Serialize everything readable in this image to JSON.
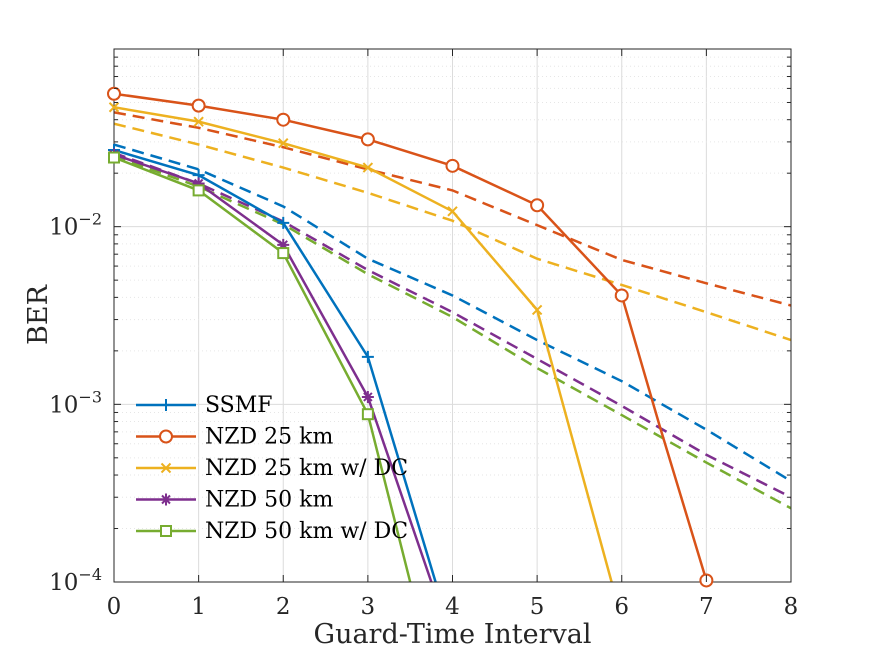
{
  "chart_data": {
    "type": "line",
    "xlabel": "Guard-Time Interval",
    "ylabel": "BER",
    "xlim": [
      0,
      8
    ],
    "ylim": [
      0.0001,
      0.1
    ],
    "yscale": "log",
    "grid": true,
    "minor_grid": true,
    "legend_position": "bottom-left",
    "x_ticks": [
      {
        "value": 0,
        "label": "0"
      },
      {
        "value": 1,
        "label": "1"
      },
      {
        "value": 2,
        "label": "2"
      },
      {
        "value": 3,
        "label": "3"
      },
      {
        "value": 4,
        "label": "4"
      },
      {
        "value": 5,
        "label": "5"
      },
      {
        "value": 6,
        "label": "6"
      },
      {
        "value": 7,
        "label": "7"
      },
      {
        "value": 8,
        "label": "8"
      }
    ],
    "y_ticks": [
      {
        "value": 0.0001,
        "mantissa": "10",
        "exponent": "−4"
      },
      {
        "value": 0.001,
        "mantissa": "10",
        "exponent": "−3"
      },
      {
        "value": 0.01,
        "mantissa": "10",
        "exponent": "−2"
      }
    ],
    "series": [
      {
        "name": "SSMF",
        "color": "#0072BD",
        "marker": "plus",
        "style": "solid",
        "x": [
          0,
          1,
          2,
          3,
          3.8
        ],
        "y": [
          0.027,
          0.0195,
          0.0105,
          0.00185,
          0.0001
        ]
      },
      {
        "name": "NZD 25 km",
        "color": "#D95319",
        "marker": "circle",
        "style": "solid",
        "x": [
          0,
          1,
          2,
          3,
          4,
          5,
          6,
          6.45,
          7
        ],
        "y": [
          0.056,
          0.048,
          0.04,
          0.031,
          0.022,
          0.0132,
          0.0041,
          0.00075,
          0.000102
        ]
      },
      {
        "name": "NZD 25 km w/ DC",
        "color": "#EDB120",
        "marker": "x",
        "style": "solid",
        "x": [
          0,
          1,
          2,
          3,
          4,
          5,
          5.88
        ],
        "y": [
          0.047,
          0.039,
          0.0295,
          0.0215,
          0.0122,
          0.0034,
          0.0001
        ]
      },
      {
        "name": "NZD 50 km",
        "color": "#7E2F8E",
        "marker": "asterisk",
        "style": "solid",
        "x": [
          0,
          1,
          2,
          3,
          3.75
        ],
        "y": [
          0.0255,
          0.0175,
          0.0079,
          0.0011,
          0.0001
        ]
      },
      {
        "name": "NZD 50 km w/ DC",
        "color": "#77AC30",
        "marker": "square",
        "style": "solid",
        "x": [
          0,
          1,
          2,
          3,
          3.5
        ],
        "y": [
          0.0245,
          0.016,
          0.0071,
          0.00088,
          0.0001
        ]
      }
    ],
    "dashed_lines": [
      {
        "color": "#0072BD",
        "x": [
          0,
          1,
          2,
          3,
          4,
          5,
          6,
          7,
          8
        ],
        "y": [
          0.029,
          0.021,
          0.013,
          0.0066,
          0.0041,
          0.0023,
          0.00135,
          0.00072,
          0.00037
        ]
      },
      {
        "color": "#D95319",
        "x": [
          0,
          1,
          2,
          3,
          4,
          5,
          6,
          7,
          8
        ],
        "y": [
          0.044,
          0.036,
          0.028,
          0.021,
          0.016,
          0.0102,
          0.0065,
          0.0048,
          0.0036
        ]
      },
      {
        "color": "#EDB120",
        "x": [
          0,
          1,
          2,
          3,
          4,
          5,
          6,
          7,
          8
        ],
        "y": [
          0.038,
          0.029,
          0.0215,
          0.0155,
          0.0108,
          0.0066,
          0.0047,
          0.0033,
          0.0023
        ]
      },
      {
        "color": "#7E2F8E",
        "x": [
          0,
          1,
          2,
          3,
          4,
          5,
          6,
          7,
          8
        ],
        "y": [
          0.026,
          0.0175,
          0.0107,
          0.0057,
          0.0033,
          0.0018,
          0.00098,
          0.00052,
          0.0003
        ]
      },
      {
        "color": "#77AC30",
        "x": [
          0,
          1,
          2,
          3,
          4,
          5,
          6,
          7,
          8
        ],
        "y": [
          0.025,
          0.0168,
          0.0103,
          0.0054,
          0.0031,
          0.0016,
          0.00087,
          0.00047,
          0.00026
        ]
      }
    ]
  }
}
